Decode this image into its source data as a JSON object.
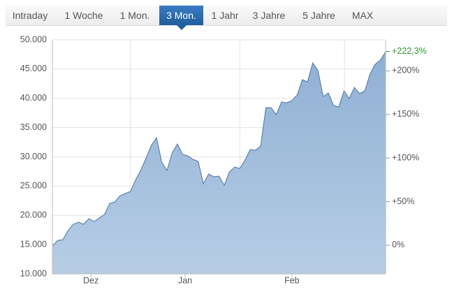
{
  "tabs": [
    "Intraday",
    "1 Woche",
    "1 Mon.",
    "3 Mon.",
    "1 Jahr",
    "3 Jahre",
    "5 Jahre",
    "MAX"
  ],
  "selected_tab": 3,
  "chart_data": {
    "type": "area",
    "x": [
      0,
      1,
      2,
      3,
      4,
      5,
      6,
      7,
      8,
      9,
      10,
      11,
      12,
      13,
      14,
      15,
      16,
      17,
      18,
      19,
      20,
      21,
      22,
      23,
      24,
      25,
      26,
      27,
      28,
      29,
      30,
      31,
      32,
      33,
      34,
      35,
      36,
      37,
      38,
      39,
      40,
      41,
      42,
      43,
      44,
      45,
      46,
      47,
      48,
      49,
      50,
      51,
      52,
      53,
      54,
      55,
      56,
      57,
      58,
      59,
      60,
      61,
      62,
      63,
      64
    ],
    "series": [
      {
        "color": "#4a76a8",
        "values": [
          14780,
          15730,
          15850,
          17400,
          18480,
          18840,
          18480,
          19440,
          18960,
          19560,
          20150,
          22060,
          22300,
          23370,
          23730,
          24090,
          26120,
          27790,
          29820,
          31970,
          33280,
          29100,
          27670,
          30660,
          32210,
          30420,
          30180,
          29580,
          29220,
          25400,
          27080,
          26600,
          26720,
          25160,
          27430,
          28270,
          28030,
          29460,
          31250,
          31130,
          31850,
          38420,
          38420,
          37220,
          39370,
          39250,
          39610,
          40570,
          43200,
          42840,
          46060,
          44750,
          40330,
          40930,
          38780,
          38540,
          41280,
          39970,
          41880,
          40810,
          41280,
          44150,
          45820,
          46540,
          47970
        ]
      }
    ],
    "xlim": [
      0,
      64
    ],
    "xticks": [
      {
        "value": 7.4,
        "label": "Dez"
      },
      {
        "value": 25.5,
        "label": "Jan"
      },
      {
        "value": 46,
        "label": "Feb"
      }
    ],
    "xgrid": [
      15,
      36,
      56.1
    ],
    "ylim": [
      10000,
      50000
    ],
    "yticks": [
      {
        "value": 10000,
        "label": "10.000"
      },
      {
        "value": 15000,
        "label": "15.000"
      },
      {
        "value": 20000,
        "label": "20.000"
      },
      {
        "value": 25000,
        "label": "25.000"
      },
      {
        "value": 30000,
        "label": "30.000"
      },
      {
        "value": 35000,
        "label": "35.000"
      },
      {
        "value": 40000,
        "label": "40.000"
      },
      {
        "value": 45000,
        "label": "45.000"
      },
      {
        "value": 50000,
        "label": "50.000"
      }
    ],
    "y2lim": [
      -32.9,
      235.6
    ],
    "y2ticks": [
      {
        "value": 0,
        "label": "0%"
      },
      {
        "value": 50,
        "label": "+50%"
      },
      {
        "value": 100,
        "label": "+100%"
      },
      {
        "value": 150,
        "label": "+150%"
      },
      {
        "value": 200,
        "label": "+200%"
      }
    ],
    "annotation": {
      "value": 222.3,
      "label": "+222,3%",
      "color": "#2a9a2a"
    },
    "grid": true
  }
}
